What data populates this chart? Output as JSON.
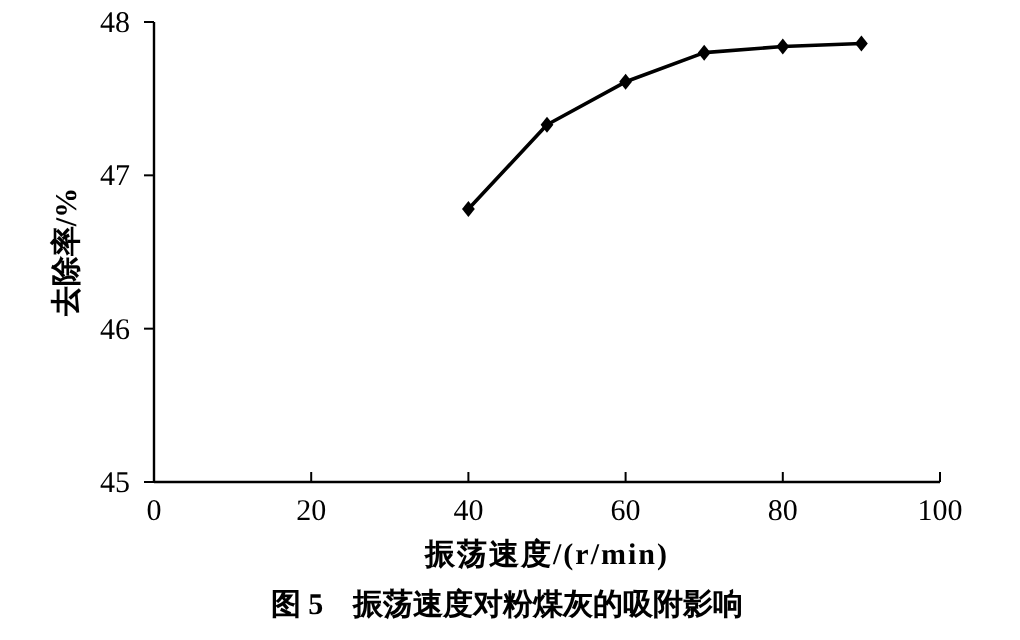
{
  "chart_data": {
    "type": "line",
    "title": "图 5　振荡速度对粉煤灰的吸附影响",
    "xlabel": "振荡速度/(r/min)",
    "ylabel": "去除率/%",
    "x": [
      40,
      50,
      60,
      70,
      80,
      90
    ],
    "series": [
      {
        "color": "#000000",
        "values": [
          46.78,
          47.33,
          47.61,
          47.8,
          47.84,
          47.86
        ]
      }
    ],
    "xlim": [
      0,
      100
    ],
    "xticks": [
      0,
      20,
      40,
      60,
      80,
      100
    ],
    "ylim": [
      45,
      48
    ],
    "yticks": [
      45,
      46,
      47,
      48
    ],
    "marker": "diamond",
    "line_style": "solid",
    "grid": false
  }
}
